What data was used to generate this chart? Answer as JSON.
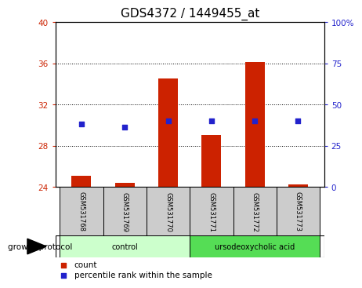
{
  "title": "GDS4372 / 1449455_at",
  "samples": [
    "GSM531768",
    "GSM531769",
    "GSM531770",
    "GSM531771",
    "GSM531772",
    "GSM531773"
  ],
  "red_values": [
    25.1,
    24.35,
    34.5,
    29.0,
    36.1,
    24.25
  ],
  "blue_percentile": [
    38,
    36,
    40,
    40,
    40,
    40
  ],
  "ylim_left": [
    24,
    40
  ],
  "ylim_right": [
    0,
    100
  ],
  "yticks_left": [
    24,
    28,
    32,
    36,
    40
  ],
  "yticks_right": [
    0,
    25,
    50,
    75,
    100
  ],
  "ytick_labels_right": [
    "0",
    "25",
    "50",
    "75",
    "100%"
  ],
  "gridlines_at": [
    28,
    32,
    36
  ],
  "bar_color": "#cc2200",
  "dot_color": "#2222cc",
  "groups": [
    {
      "label": "control",
      "indices": [
        0,
        1,
        2
      ],
      "color": "#ccffcc"
    },
    {
      "label": "ursodeoxycholic acid",
      "indices": [
        3,
        4,
        5
      ],
      "color": "#55dd55"
    }
  ],
  "group_protocol_label": "growth protocol",
  "legend_count_label": "count",
  "legend_percentile_label": "percentile rank within the sample",
  "title_fontsize": 11,
  "sample_box_color": "#cccccc",
  "bar_width": 0.45
}
